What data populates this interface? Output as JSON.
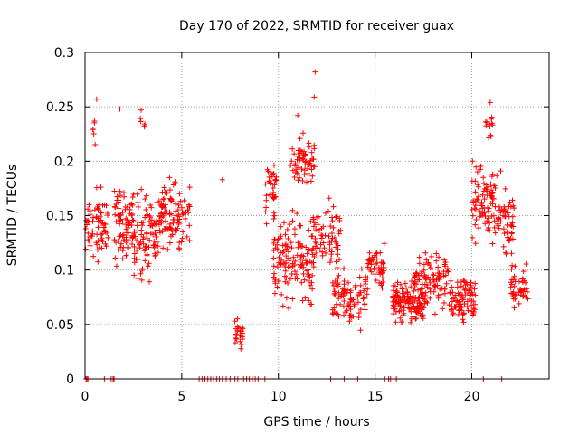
{
  "chart_data": {
    "type": "scatter",
    "title": "Day 170 of 2022, SRMTID for receiver guax",
    "xlabel": "GPS time / hours",
    "ylabel": "SRMTID / TECUs",
    "xlim": [
      0,
      24
    ],
    "ylim": [
      0,
      0.3
    ],
    "x_ticks": [
      0,
      5,
      10,
      15,
      20
    ],
    "x_tick_labels": [
      "0",
      "5",
      "10",
      "15",
      "20"
    ],
    "y_ticks": [
      0,
      0.05,
      0.1,
      0.15,
      0.2,
      0.25,
      0.3
    ],
    "y_tick_labels": [
      "0",
      "0.05",
      "0.1",
      "0.15",
      "0.2",
      "0.25",
      "0.3"
    ],
    "grid": true,
    "marker": "+",
    "color": "#ff0000",
    "series": [
      {
        "name": "SRMTID",
        "clusters": [
          {
            "x_start": 0.0,
            "x_end": 1.2,
            "y_center": 0.14,
            "y_spread": 0.045,
            "count": 70
          },
          {
            "x_start": 0.4,
            "x_end": 0.6,
            "y_center": 0.23,
            "y_spread": 0.025,
            "count": 6
          },
          {
            "x_start": 1.5,
            "x_end": 2.5,
            "y_center": 0.14,
            "y_spread": 0.05,
            "count": 80
          },
          {
            "x_start": 2.5,
            "x_end": 3.8,
            "y_center": 0.13,
            "y_spread": 0.06,
            "count": 90
          },
          {
            "x_start": 2.8,
            "x_end": 3.1,
            "y_center": 0.235,
            "y_spread": 0.012,
            "count": 5
          },
          {
            "x_start": 3.8,
            "x_end": 5.5,
            "y_center": 0.15,
            "y_spread": 0.045,
            "count": 110
          },
          {
            "x_start": 7.7,
            "x_end": 8.2,
            "y_center": 0.04,
            "y_spread": 0.025,
            "count": 25
          },
          {
            "x_start": 9.3,
            "x_end": 9.9,
            "y_center": 0.17,
            "y_spread": 0.045,
            "count": 35
          },
          {
            "x_start": 9.7,
            "x_end": 12.0,
            "y_center": 0.11,
            "y_spread": 0.055,
            "count": 150
          },
          {
            "x_start": 10.6,
            "x_end": 11.9,
            "y_center": 0.2,
            "y_spread": 0.035,
            "count": 60
          },
          {
            "x_start": 12.0,
            "x_end": 13.3,
            "y_center": 0.13,
            "y_spread": 0.045,
            "count": 60
          },
          {
            "x_start": 12.8,
            "x_end": 14.5,
            "y_center": 0.075,
            "y_spread": 0.035,
            "count": 90
          },
          {
            "x_start": 14.5,
            "x_end": 15.5,
            "y_center": 0.1,
            "y_spread": 0.03,
            "count": 60
          },
          {
            "x_start": 15.9,
            "x_end": 17.5,
            "y_center": 0.07,
            "y_spread": 0.025,
            "count": 120
          },
          {
            "x_start": 17.0,
            "x_end": 18.8,
            "y_center": 0.09,
            "y_spread": 0.035,
            "count": 110
          },
          {
            "x_start": 18.8,
            "x_end": 20.2,
            "y_center": 0.075,
            "y_spread": 0.03,
            "count": 90
          },
          {
            "x_start": 20.0,
            "x_end": 21.5,
            "y_center": 0.16,
            "y_spread": 0.05,
            "count": 100
          },
          {
            "x_start": 20.7,
            "x_end": 21.1,
            "y_center": 0.23,
            "y_spread": 0.02,
            "count": 12
          },
          {
            "x_start": 21.5,
            "x_end": 22.2,
            "y_center": 0.14,
            "y_spread": 0.04,
            "count": 40
          },
          {
            "x_start": 22.0,
            "x_end": 22.9,
            "y_center": 0.085,
            "y_spread": 0.025,
            "count": 45
          }
        ],
        "isolated_points": [
          [
            0.6,
            0.257
          ],
          [
            1.8,
            0.248
          ],
          [
            2.9,
            0.247
          ],
          [
            7.1,
            0.183
          ],
          [
            11.9,
            0.282
          ],
          [
            11.85,
            0.259
          ],
          [
            11.0,
            0.242
          ],
          [
            20.95,
            0.254
          ]
        ],
        "zero_points": [
          0.05,
          0.1,
          0.15,
          1.0,
          1.35,
          1.45,
          1.5,
          5.9,
          6.05,
          6.2,
          6.35,
          6.5,
          6.65,
          6.8,
          6.95,
          7.1,
          7.3,
          7.5,
          7.75,
          7.9,
          8.2,
          8.35,
          8.5,
          8.65,
          8.8,
          8.95,
          9.3,
          12.7,
          13.4,
          14.1,
          15.5,
          15.7,
          15.8,
          16.1,
          20.6,
          21.55
        ]
      }
    ]
  }
}
